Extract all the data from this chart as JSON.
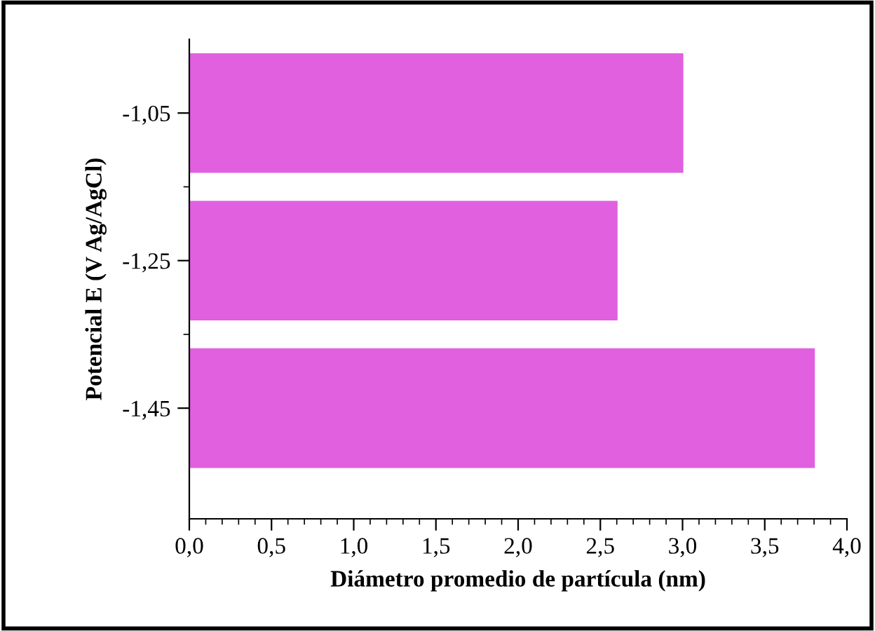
{
  "chart_data": {
    "type": "bar",
    "orientation": "horizontal",
    "xlabel": "Diámetro promedio de partícula (nm)",
    "ylabel": "Potencial E (V Ag/AgCl)",
    "categories": [
      "-1,05",
      "-1,25",
      "-1,45"
    ],
    "values": [
      3.0,
      2.6,
      3.8
    ],
    "color": "#e060e0",
    "xlim": [
      0,
      4.0
    ],
    "xticks": [
      {
        "value": 0,
        "label": "0,0"
      },
      {
        "value": 0.5,
        "label": "0,5"
      },
      {
        "value": 1.0,
        "label": "1,0"
      },
      {
        "value": 1.5,
        "label": "1,5"
      },
      {
        "value": 2.0,
        "label": "2,0"
      },
      {
        "value": 2.5,
        "label": "2,5"
      },
      {
        "value": 3.0,
        "label": "3,0"
      },
      {
        "value": 3.5,
        "label": "3,5"
      },
      {
        "value": 4.0,
        "label": "4,0"
      }
    ],
    "grid": false,
    "legend": false
  }
}
